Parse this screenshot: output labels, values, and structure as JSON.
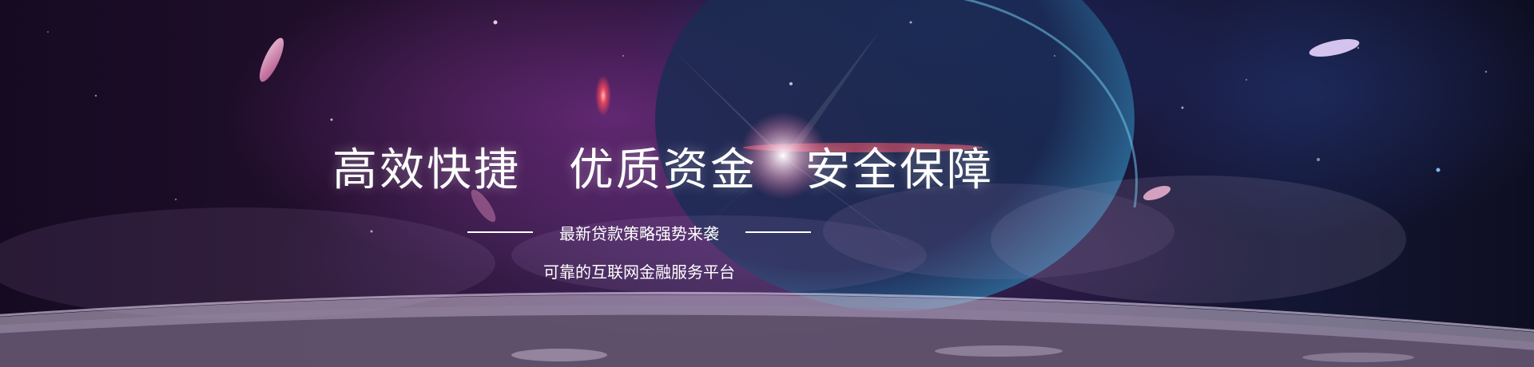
{
  "banner": {
    "headline": [
      "高效快捷",
      "优质资金",
      "安全保障"
    ],
    "subtitle": "最新贷款策略强势来袭",
    "tagline": "可靠的互联网金融服务平台"
  },
  "colors": {
    "text": "#ffffff",
    "deep_space": "#1a0c28",
    "nebula_purple": "#9a4aa8",
    "planet_blue": "#2a5d8f",
    "flare_red": "#ff5a6e",
    "petal_pink": "#f0a6c8"
  }
}
